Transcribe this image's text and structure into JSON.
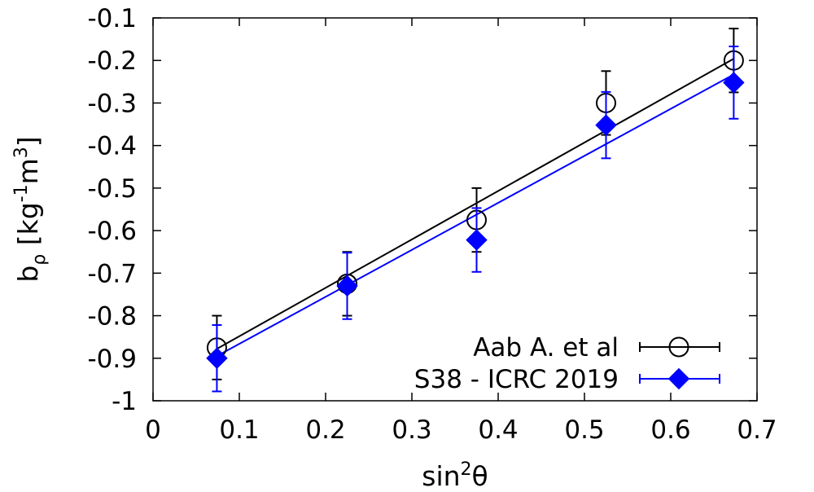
{
  "chart_data": {
    "type": "scatter",
    "xlabel": {
      "base": "sin",
      "sup": "2",
      "tail": "θ"
    },
    "ylabel": {
      "base": "b",
      "sub": "ρ",
      "mid": " [kg",
      "sup1": "-1",
      "mid2": "m",
      "sup2": "3",
      "tail": "]"
    },
    "xlim": [
      0,
      0.7
    ],
    "ylim": [
      -1,
      -0.1
    ],
    "x_ticks": [
      0,
      0.1,
      0.2,
      0.3,
      0.4,
      0.5,
      0.6,
      0.7
    ],
    "x_tick_labels": [
      "0",
      "0.1",
      "0.2",
      "0.3",
      "0.4",
      "0.5",
      "0.6",
      "0.7"
    ],
    "y_ticks": [
      -1,
      -0.9,
      -0.8,
      -0.7,
      -0.6,
      -0.5,
      -0.4,
      -0.3,
      -0.2,
      -0.1
    ],
    "y_tick_labels": [
      "-1",
      "-0.9",
      "-0.8",
      "-0.7",
      "-0.6",
      "-0.5",
      "-0.4",
      "-0.3",
      "-0.2",
      "-0.1"
    ],
    "grid": false,
    "legend_position": "bottom-right",
    "series": [
      {
        "name": "Aab A. et al",
        "marker": "open-circle",
        "color": "#000000",
        "x": [
          0.074,
          0.225,
          0.375,
          0.525,
          0.673
        ],
        "y": [
          -0.875,
          -0.725,
          -0.575,
          -0.3,
          -0.2
        ],
        "yerr": [
          0.075,
          0.075,
          0.075,
          0.075,
          0.075
        ],
        "fit": {
          "x": [
            0.074,
            0.673
          ],
          "y": [
            -0.878,
            -0.196
          ]
        }
      },
      {
        "name": "S38 - ICRC 2019",
        "marker": "filled-diamond",
        "color": "#0000ff",
        "x": [
          0.074,
          0.225,
          0.375,
          0.525,
          0.673
        ],
        "y": [
          -0.9,
          -0.73,
          -0.622,
          -0.352,
          -0.252
        ],
        "yerr": [
          0.078,
          0.078,
          0.075,
          0.078,
          0.085
        ],
        "fit": {
          "x": [
            0.074,
            0.673
          ],
          "y": [
            -0.895,
            -0.233
          ]
        }
      }
    ]
  }
}
